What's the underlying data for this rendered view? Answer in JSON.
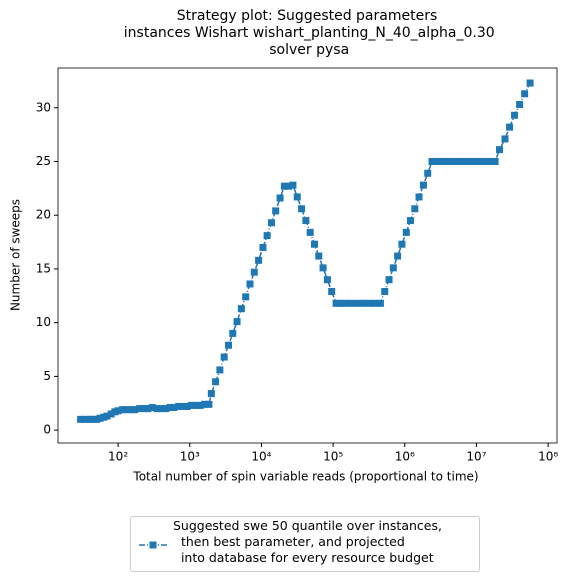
{
  "chart_data": {
    "type": "line",
    "title": "Strategy plot: Suggested parameters\n instances Wishart wishart_planting_N_40_alpha_0.30\n solver pysa",
    "xlabel": "Total number of spin variable reads (proportional to time)",
    "ylabel": "Number of sweeps",
    "xscale": "log",
    "xlim": [
      14.5,
      133000000
    ],
    "xticks": [
      {
        "value": 100,
        "label": "10²"
      },
      {
        "value": 1000,
        "label": "10³"
      },
      {
        "value": 10000,
        "label": "10⁴"
      },
      {
        "value": 100000,
        "label": "10⁵"
      },
      {
        "value": 1000000,
        "label": "10⁶"
      },
      {
        "value": 10000000,
        "label": "10⁷"
      },
      {
        "value": 100000000,
        "label": "10⁸"
      }
    ],
    "ylim": [
      -1.2,
      33.7
    ],
    "yticks": [
      0,
      5,
      10,
      15,
      20,
      25,
      30
    ],
    "legend": "lower center",
    "series": [
      {
        "name": "Suggested swe 50 quantile over instances,\n  then best parameter, and projected\n  into database for every resource budget",
        "color": "#1f77b4",
        "x": [
          30,
          35,
          40,
          45,
          50,
          56,
          63,
          70,
          80,
          90,
          100,
          115,
          130,
          150,
          170,
          200,
          230,
          260,
          300,
          350,
          400,
          460,
          530,
          600,
          700,
          800,
          920,
          1050,
          1200,
          1400,
          1600,
          1850,
          2000,
          2290,
          2630,
          3020,
          3470,
          3980,
          4570,
          5250,
          6030,
          6920,
          7940,
          9120,
          10500,
          12000,
          13800,
          15800,
          18200,
          20900,
          24000,
          27500,
          31600,
          36300,
          41700,
          47900,
          55000,
          63100,
          72400,
          83200,
          95500,
          110000,
          126000,
          151000,
          182000,
          219000,
          263000,
          316000,
          380000,
          457000,
          525000,
          603000,
          692000,
          794000,
          912000,
          1050000,
          1200000,
          1380000,
          1580000,
          1820000,
          2090000,
          2400000,
          2880000,
          3470000,
          4170000,
          5010000,
          6030000,
          7240000,
          8710000,
          10500000,
          12600000,
          15100000,
          18200000,
          21000000,
          25000000,
          29000000,
          34000000,
          40000000,
          47000000,
          56000000
        ],
        "values": [
          1.0,
          1.0,
          1.0,
          1.0,
          1.0,
          1.1,
          1.2,
          1.3,
          1.5,
          1.7,
          1.8,
          1.9,
          1.9,
          1.9,
          1.9,
          2.0,
          2.0,
          2.0,
          2.1,
          2.0,
          2.0,
          2.0,
          2.1,
          2.1,
          2.2,
          2.2,
          2.2,
          2.3,
          2.3,
          2.3,
          2.4,
          2.4,
          3.4,
          4.5,
          5.6,
          6.8,
          7.9,
          9.0,
          10.1,
          11.3,
          12.4,
          13.6,
          14.7,
          15.8,
          17.0,
          18.1,
          19.3,
          20.4,
          21.6,
          22.7,
          22.7,
          22.8,
          21.7,
          20.6,
          19.5,
          18.4,
          17.3,
          16.2,
          15.1,
          14.0,
          12.9,
          11.8,
          11.8,
          11.8,
          11.8,
          11.8,
          11.8,
          11.8,
          11.8,
          11.8,
          12.9,
          14.0,
          15.1,
          16.2,
          17.3,
          18.4,
          19.5,
          20.6,
          21.7,
          22.8,
          23.9,
          25.0,
          25.0,
          25.0,
          25.0,
          25.0,
          25.0,
          25.0,
          25.0,
          25.0,
          25.0,
          25.0,
          25.0,
          26.1,
          27.1,
          28.2,
          29.3,
          30.3,
          31.3,
          32.3
        ]
      }
    ]
  }
}
